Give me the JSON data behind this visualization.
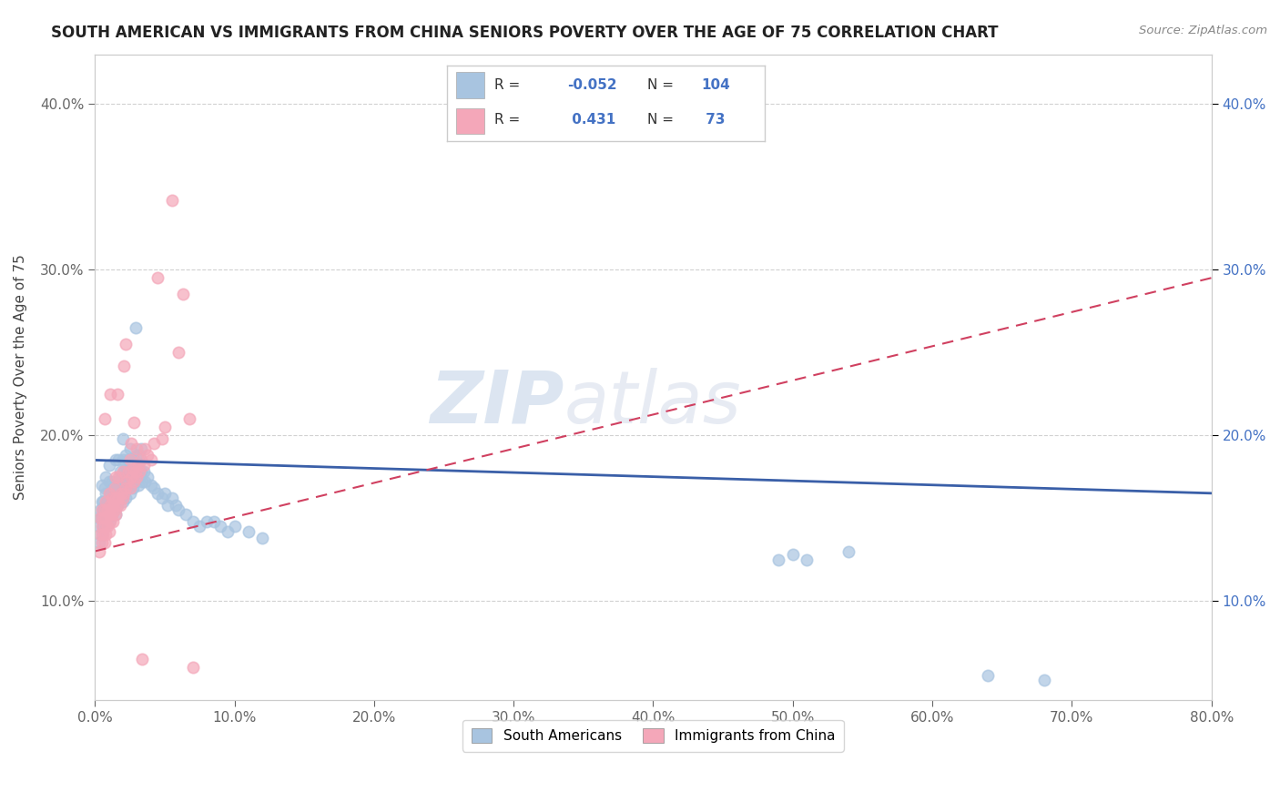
{
  "title": "SOUTH AMERICAN VS IMMIGRANTS FROM CHINA SENIORS POVERTY OVER THE AGE OF 75 CORRELATION CHART",
  "source": "Source: ZipAtlas.com",
  "ylabel": "Seniors Poverty Over the Age of 75",
  "xlim": [
    0.0,
    0.8
  ],
  "ylim": [
    0.04,
    0.43
  ],
  "xticks": [
    0.0,
    0.1,
    0.2,
    0.3,
    0.4,
    0.5,
    0.6,
    0.7,
    0.8
  ],
  "yticks": [
    0.1,
    0.2,
    0.3,
    0.4
  ],
  "legend1_label": "South Americans",
  "legend2_label": "Immigrants from China",
  "R1": -0.052,
  "N1": 104,
  "R2": 0.431,
  "N2": 73,
  "blue_color": "#a8c4e0",
  "pink_color": "#f4a7b9",
  "blue_line_color": "#3a5fa8",
  "pink_line_color": "#d04060",
  "watermark": "ZIPatlas",
  "blue_dots": [
    [
      0.003,
      0.135
    ],
    [
      0.003,
      0.145
    ],
    [
      0.004,
      0.15
    ],
    [
      0.004,
      0.155
    ],
    [
      0.005,
      0.14
    ],
    [
      0.005,
      0.15
    ],
    [
      0.005,
      0.16
    ],
    [
      0.005,
      0.17
    ],
    [
      0.006,
      0.145
    ],
    [
      0.006,
      0.155
    ],
    [
      0.006,
      0.16
    ],
    [
      0.007,
      0.148
    ],
    [
      0.007,
      0.158
    ],
    [
      0.007,
      0.168
    ],
    [
      0.008,
      0.145
    ],
    [
      0.008,
      0.155
    ],
    [
      0.008,
      0.165
    ],
    [
      0.008,
      0.175
    ],
    [
      0.009,
      0.15
    ],
    [
      0.009,
      0.16
    ],
    [
      0.01,
      0.148
    ],
    [
      0.01,
      0.16
    ],
    [
      0.01,
      0.172
    ],
    [
      0.01,
      0.182
    ],
    [
      0.011,
      0.155
    ],
    [
      0.011,
      0.165
    ],
    [
      0.012,
      0.152
    ],
    [
      0.012,
      0.162
    ],
    [
      0.012,
      0.172
    ],
    [
      0.013,
      0.158
    ],
    [
      0.013,
      0.168
    ],
    [
      0.014,
      0.155
    ],
    [
      0.014,
      0.165
    ],
    [
      0.015,
      0.152
    ],
    [
      0.015,
      0.162
    ],
    [
      0.015,
      0.172
    ],
    [
      0.015,
      0.185
    ],
    [
      0.016,
      0.158
    ],
    [
      0.016,
      0.168
    ],
    [
      0.017,
      0.16
    ],
    [
      0.017,
      0.172
    ],
    [
      0.017,
      0.185
    ],
    [
      0.018,
      0.165
    ],
    [
      0.018,
      0.178
    ],
    [
      0.019,
      0.162
    ],
    [
      0.019,
      0.175
    ],
    [
      0.02,
      0.16
    ],
    [
      0.02,
      0.172
    ],
    [
      0.02,
      0.185
    ],
    [
      0.02,
      0.198
    ],
    [
      0.021,
      0.165
    ],
    [
      0.021,
      0.178
    ],
    [
      0.022,
      0.162
    ],
    [
      0.022,
      0.175
    ],
    [
      0.022,
      0.188
    ],
    [
      0.023,
      0.168
    ],
    [
      0.023,
      0.18
    ],
    [
      0.024,
      0.172
    ],
    [
      0.024,
      0.185
    ],
    [
      0.025,
      0.165
    ],
    [
      0.025,
      0.178
    ],
    [
      0.025,
      0.192
    ],
    [
      0.026,
      0.17
    ],
    [
      0.026,
      0.183
    ],
    [
      0.027,
      0.168
    ],
    [
      0.027,
      0.182
    ],
    [
      0.028,
      0.172
    ],
    [
      0.028,
      0.185
    ],
    [
      0.029,
      0.265
    ],
    [
      0.03,
      0.175
    ],
    [
      0.03,
      0.188
    ],
    [
      0.031,
      0.17
    ],
    [
      0.031,
      0.183
    ],
    [
      0.032,
      0.175
    ],
    [
      0.032,
      0.188
    ],
    [
      0.033,
      0.178
    ],
    [
      0.033,
      0.192
    ],
    [
      0.034,
      0.172
    ],
    [
      0.035,
      0.178
    ],
    [
      0.036,
      0.172
    ],
    [
      0.038,
      0.175
    ],
    [
      0.04,
      0.17
    ],
    [
      0.042,
      0.168
    ],
    [
      0.045,
      0.165
    ],
    [
      0.048,
      0.162
    ],
    [
      0.05,
      0.165
    ],
    [
      0.052,
      0.158
    ],
    [
      0.055,
      0.162
    ],
    [
      0.058,
      0.158
    ],
    [
      0.06,
      0.155
    ],
    [
      0.065,
      0.152
    ],
    [
      0.07,
      0.148
    ],
    [
      0.075,
      0.145
    ],
    [
      0.08,
      0.148
    ],
    [
      0.085,
      0.148
    ],
    [
      0.09,
      0.145
    ],
    [
      0.095,
      0.142
    ],
    [
      0.1,
      0.145
    ],
    [
      0.11,
      0.142
    ],
    [
      0.12,
      0.138
    ],
    [
      0.49,
      0.125
    ],
    [
      0.5,
      0.128
    ],
    [
      0.51,
      0.125
    ],
    [
      0.54,
      0.13
    ],
    [
      0.64,
      0.055
    ],
    [
      0.68,
      0.052
    ]
  ],
  "pink_dots": [
    [
      0.003,
      0.13
    ],
    [
      0.004,
      0.14
    ],
    [
      0.004,
      0.15
    ],
    [
      0.005,
      0.135
    ],
    [
      0.005,
      0.145
    ],
    [
      0.005,
      0.155
    ],
    [
      0.006,
      0.14
    ],
    [
      0.006,
      0.15
    ],
    [
      0.007,
      0.135
    ],
    [
      0.007,
      0.145
    ],
    [
      0.007,
      0.155
    ],
    [
      0.007,
      0.21
    ],
    [
      0.008,
      0.14
    ],
    [
      0.008,
      0.15
    ],
    [
      0.008,
      0.16
    ],
    [
      0.009,
      0.145
    ],
    [
      0.009,
      0.155
    ],
    [
      0.01,
      0.142
    ],
    [
      0.01,
      0.152
    ],
    [
      0.01,
      0.165
    ],
    [
      0.011,
      0.148
    ],
    [
      0.011,
      0.158
    ],
    [
      0.011,
      0.225
    ],
    [
      0.012,
      0.152
    ],
    [
      0.012,
      0.162
    ],
    [
      0.013,
      0.148
    ],
    [
      0.013,
      0.158
    ],
    [
      0.014,
      0.155
    ],
    [
      0.014,
      0.168
    ],
    [
      0.015,
      0.152
    ],
    [
      0.015,
      0.162
    ],
    [
      0.015,
      0.175
    ],
    [
      0.016,
      0.158
    ],
    [
      0.016,
      0.225
    ],
    [
      0.017,
      0.162
    ],
    [
      0.017,
      0.175
    ],
    [
      0.018,
      0.158
    ],
    [
      0.019,
      0.165
    ],
    [
      0.02,
      0.162
    ],
    [
      0.02,
      0.178
    ],
    [
      0.021,
      0.165
    ],
    [
      0.021,
      0.242
    ],
    [
      0.022,
      0.168
    ],
    [
      0.022,
      0.255
    ],
    [
      0.023,
      0.172
    ],
    [
      0.024,
      0.178
    ],
    [
      0.025,
      0.168
    ],
    [
      0.025,
      0.185
    ],
    [
      0.026,
      0.175
    ],
    [
      0.026,
      0.195
    ],
    [
      0.027,
      0.18
    ],
    [
      0.028,
      0.172
    ],
    [
      0.028,
      0.208
    ],
    [
      0.029,
      0.178
    ],
    [
      0.03,
      0.175
    ],
    [
      0.03,
      0.192
    ],
    [
      0.031,
      0.182
    ],
    [
      0.032,
      0.178
    ],
    [
      0.033,
      0.185
    ],
    [
      0.034,
      0.065
    ],
    [
      0.035,
      0.182
    ],
    [
      0.036,
      0.192
    ],
    [
      0.038,
      0.188
    ],
    [
      0.04,
      0.185
    ],
    [
      0.042,
      0.195
    ],
    [
      0.045,
      0.295
    ],
    [
      0.048,
      0.198
    ],
    [
      0.05,
      0.205
    ],
    [
      0.055,
      0.342
    ],
    [
      0.06,
      0.25
    ],
    [
      0.063,
      0.285
    ],
    [
      0.068,
      0.21
    ],
    [
      0.07,
      0.06
    ]
  ]
}
